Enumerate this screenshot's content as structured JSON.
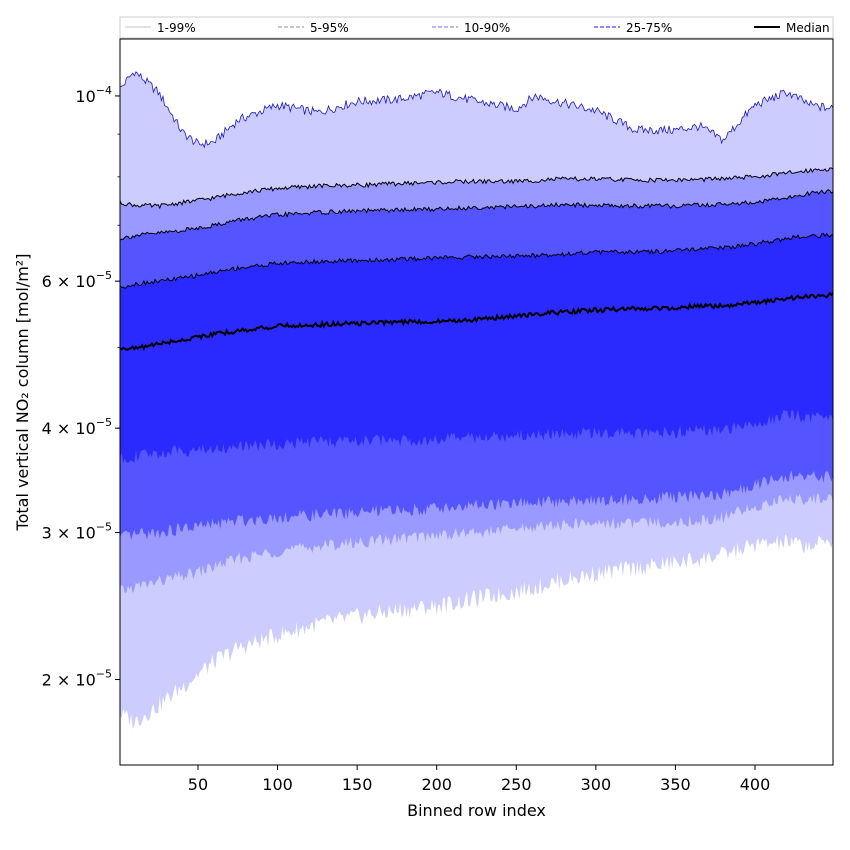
{
  "chart_data": {
    "type": "area",
    "xlabel": "Binned row index",
    "ylabel": "Total vertical NO₂ column [mol/m²]",
    "y_scale": "log",
    "xlim": [
      1,
      449
    ],
    "ylim": [
      1.58e-05,
      0.000117
    ],
    "x_ticks": [
      50,
      100,
      150,
      200,
      250,
      300,
      350,
      400
    ],
    "y_ticks": [
      {
        "value": 2e-05,
        "mantissa": "2",
        "exponent": "−5"
      },
      {
        "value": 3e-05,
        "mantissa": "3",
        "exponent": "−5"
      },
      {
        "value": 4e-05,
        "mantissa": "4",
        "exponent": "−5"
      },
      {
        "value": 6e-05,
        "mantissa": "6",
        "exponent": "−5"
      },
      {
        "value": 0.0001,
        "mantissa": "10",
        "exponent": "−4"
      }
    ],
    "x": [
      1,
      10,
      25,
      40,
      50,
      60,
      75,
      100,
      125,
      150,
      175,
      200,
      225,
      250,
      262,
      275,
      300,
      325,
      350,
      365,
      380,
      400,
      420,
      435,
      449
    ],
    "bands": [
      {
        "name": "1-99%",
        "color": "#ccccff",
        "line_color": "#1a1acc",
        "lower": [
          1.82e-05,
          1.78e-05,
          1.86e-05,
          1.96e-05,
          2.03e-05,
          2.1e-05,
          2.18e-05,
          2.26e-05,
          2.33e-05,
          2.38e-05,
          2.42e-05,
          2.45e-05,
          2.5e-05,
          2.55e-05,
          2.58e-05,
          2.62e-05,
          2.68e-05,
          2.72e-05,
          2.76e-05,
          2.79e-05,
          2.82e-05,
          2.9e-05,
          2.92e-05,
          2.89e-05,
          2.94e-05
        ],
        "upper": [
          0.000102,
          0.000107,
          0.000101,
          9.05e-05,
          8.75e-05,
          8.8e-05,
          9.35e-05,
          9.75e-05,
          9.55e-05,
          9.85e-05,
          9.9e-05,
          0.000101,
          9.85e-05,
          9.65e-05,
          0.0001,
          9.85e-05,
          9.6e-05,
          9.1e-05,
          9.1e-05,
          9.2e-05,
          8.85e-05,
          9.75e-05,
          0.000101,
          9.75e-05,
          9.65e-05
        ]
      },
      {
        "name": "5-95%",
        "color": "#9999ff",
        "line_color": "#000000",
        "lower": [
          2.55e-05,
          2.58e-05,
          2.62e-05,
          2.66e-05,
          2.69e-05,
          2.73e-05,
          2.79e-05,
          2.85e-05,
          2.89e-05,
          2.92e-05,
          2.95e-05,
          2.98e-05,
          3e-05,
          3.03e-05,
          3.05e-05,
          3.06e-05,
          3.08e-05,
          3.08e-05,
          3.09e-05,
          3.1e-05,
          3.13e-05,
          3.22e-05,
          3.3e-05,
          3.29e-05,
          3.3e-05
        ],
        "upper": [
          7.45e-05,
          7.4e-05,
          7.38e-05,
          7.45e-05,
          7.5e-05,
          7.55e-05,
          7.65e-05,
          7.75e-05,
          7.8e-05,
          7.82e-05,
          7.85e-05,
          7.88e-05,
          7.9e-05,
          7.9e-05,
          7.92e-05,
          7.95e-05,
          7.95e-05,
          7.93e-05,
          7.93e-05,
          7.94e-05,
          7.96e-05,
          8e-05,
          8.08e-05,
          8.15e-05,
          8.18e-05
        ]
      },
      {
        "name": "10-90%",
        "color": "#5555ff",
        "line_color": "#000000",
        "lower": [
          2.95e-05,
          2.98e-05,
          3e-05,
          3.03e-05,
          3.05e-05,
          3.07e-05,
          3.1e-05,
          3.13e-05,
          3.15e-05,
          3.17e-05,
          3.19e-05,
          3.21e-05,
          3.23e-05,
          3.25e-05,
          3.26e-05,
          3.27e-05,
          3.28e-05,
          3.29e-05,
          3.31e-05,
          3.32e-05,
          3.34e-05,
          3.42e-05,
          3.5e-05,
          3.5e-05,
          3.5e-05
        ],
        "upper": [
          6.75e-05,
          6.8e-05,
          6.85e-05,
          6.9e-05,
          6.95e-05,
          7e-05,
          7.1e-05,
          7.2e-05,
          7.25e-05,
          7.28e-05,
          7.3e-05,
          7.32e-05,
          7.35e-05,
          7.37e-05,
          7.38e-05,
          7.4e-05,
          7.4e-05,
          7.38e-05,
          7.38e-05,
          7.4e-05,
          7.42e-05,
          7.45e-05,
          7.55e-05,
          7.65e-05,
          7.7e-05
        ]
      },
      {
        "name": "25-75%",
        "color": "#2a2aff",
        "line_color": "#000000",
        "lower": [
          3.68e-05,
          3.7e-05,
          3.73e-05,
          3.76e-05,
          3.77e-05,
          3.78e-05,
          3.8e-05,
          3.83e-05,
          3.85e-05,
          3.86e-05,
          3.87e-05,
          3.88e-05,
          3.9e-05,
          3.92e-05,
          3.93e-05,
          3.94e-05,
          3.95e-05,
          3.95e-05,
          3.96e-05,
          3.97e-05,
          3.98e-05,
          4.05e-05,
          4.15e-05,
          4.12e-05,
          4.1e-05
        ],
        "upper": [
          5.9e-05,
          5.95e-05,
          6e-05,
          6.05e-05,
          6.1e-05,
          6.15e-05,
          6.22e-05,
          6.3e-05,
          6.33e-05,
          6.35e-05,
          6.37e-05,
          6.4e-05,
          6.42e-05,
          6.43e-05,
          6.44e-05,
          6.46e-05,
          6.5e-05,
          6.5e-05,
          6.52e-05,
          6.55e-05,
          6.58e-05,
          6.65e-05,
          6.75e-05,
          6.8e-05,
          6.82e-05
        ]
      }
    ],
    "median": {
      "name": "Median",
      "color": "#000000",
      "values": [
        5e-05,
        4.98e-05,
        5.05e-05,
        5.1e-05,
        5.15e-05,
        5.18e-05,
        5.23e-05,
        5.3e-05,
        5.32e-05,
        5.34e-05,
        5.36e-05,
        5.37e-05,
        5.4e-05,
        5.45e-05,
        5.48e-05,
        5.5e-05,
        5.54e-05,
        5.56e-05,
        5.58e-05,
        5.6e-05,
        5.6e-05,
        5.65e-05,
        5.72e-05,
        5.75e-05,
        5.78e-05
      ]
    },
    "legend": {
      "placement": "top",
      "entries": [
        {
          "label": "1-99%",
          "color": "#d0d0d0",
          "style": "solid"
        },
        {
          "label": "5-95%",
          "color": "#a0a0b0",
          "style": "dashed"
        },
        {
          "label": "10-90%",
          "color": "#8a8aff",
          "style": "dashed"
        },
        {
          "label": "25-75%",
          "color": "#4040ff",
          "style": "dashed"
        },
        {
          "label": "Median",
          "color": "#000000",
          "style": "solid"
        }
      ]
    },
    "grid": false
  }
}
